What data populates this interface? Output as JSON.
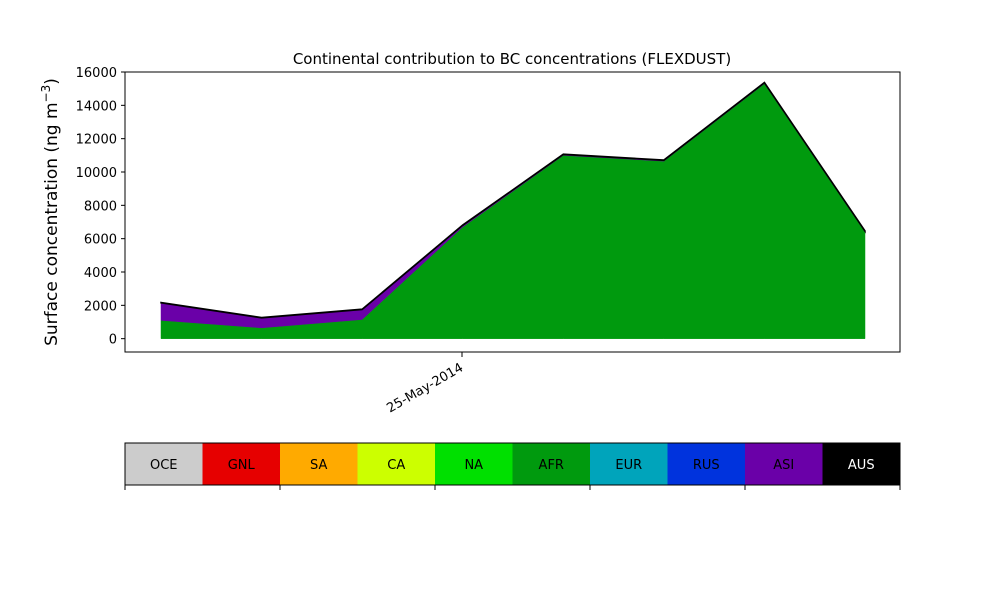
{
  "chart_data": {
    "type": "area",
    "title": "Continental contribution to BC concentrations (FLEXDUST)",
    "ylabel_text": "Surface concentration (ng m",
    "ylabel_sup": "−3",
    "ylabel_close": ")",
    "xlabel": "",
    "ylim": [
      -800,
      16000
    ],
    "yticks": [
      0,
      2000,
      4000,
      6000,
      8000,
      10000,
      12000,
      14000,
      16000
    ],
    "x_tick_labels": [
      "25-May-2014"
    ],
    "grid": false,
    "n_points": 8,
    "series": [
      {
        "name": "AFR",
        "color": "#009a0e",
        "values": [
          1100,
          650,
          1150,
          6700,
          11000,
          10650,
          15300,
          6400
        ]
      },
      {
        "name": "ASI",
        "color": "#6a00a8",
        "values": [
          1050,
          600,
          600,
          100,
          50,
          50,
          50,
          50
        ]
      },
      {
        "name": "AUS",
        "color": "#000000",
        "values": [
          20,
          20,
          20,
          20,
          20,
          20,
          20,
          20
        ]
      }
    ]
  },
  "colorbar": {
    "entries": [
      {
        "label": "OCE",
        "color": "#cccccc",
        "text_color": "#000000"
      },
      {
        "label": "GNL",
        "color": "#e60000",
        "text_color": "#000000"
      },
      {
        "label": "SA",
        "color": "#ffaa00",
        "text_color": "#000000"
      },
      {
        "label": "CA",
        "color": "#ccff00",
        "text_color": "#000000"
      },
      {
        "label": "NA",
        "color": "#00e000",
        "text_color": "#000000"
      },
      {
        "label": "AFR",
        "color": "#009a0e",
        "text_color": "#000000"
      },
      {
        "label": "EUR",
        "color": "#00a4bb",
        "text_color": "#000000"
      },
      {
        "label": "RUS",
        "color": "#0033dd",
        "text_color": "#000000"
      },
      {
        "label": "ASI",
        "color": "#6a00a8",
        "text_color": "#000000"
      },
      {
        "label": "AUS",
        "color": "#000000",
        "text_color": "#ffffff"
      }
    ]
  }
}
